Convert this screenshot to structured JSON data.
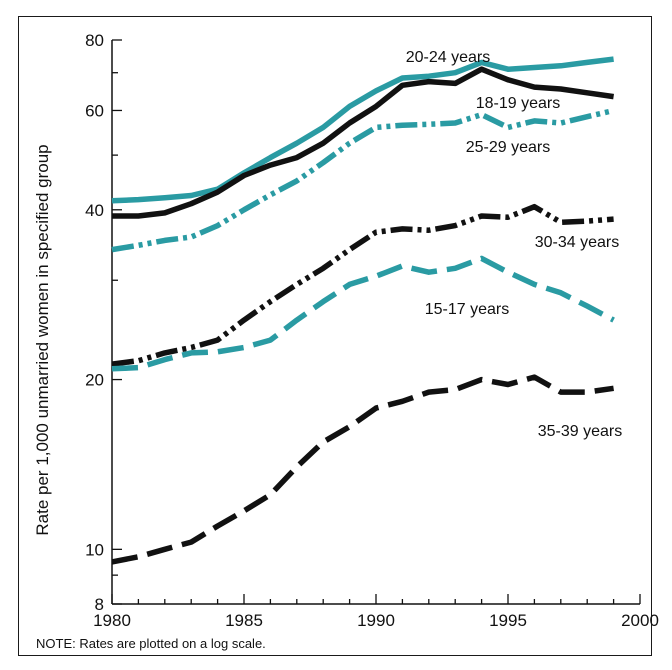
{
  "chart_data": {
    "type": "line",
    "title": "",
    "xlabel": "",
    "ylabel": "Rate per 1,000 unmarried women in specified group",
    "y_scale": "log",
    "xlim": [
      1980,
      2000
    ],
    "ylim": [
      8,
      80
    ],
    "x_ticks": [
      1980,
      1985,
      1990,
      1995,
      2000
    ],
    "y_ticks": [
      8,
      10,
      20,
      40,
      60,
      80
    ],
    "note": "NOTE: Rates are plotted on a log scale.",
    "grid": false,
    "x": [
      1980,
      1981,
      1982,
      1983,
      1984,
      1985,
      1986,
      1987,
      1988,
      1989,
      1990,
      1991,
      1992,
      1993,
      1994,
      1995,
      1996,
      1997,
      1998,
      1999
    ],
    "series": [
      {
        "name": "20-24 years",
        "color": "#2a9ba3",
        "dash": "solid",
        "values": [
          41.5,
          41.7,
          42.0,
          42.4,
          43.5,
          46.5,
          49.5,
          52.5,
          56.0,
          61.0,
          65.0,
          68.5,
          69.0,
          70.0,
          73.0,
          71.0,
          71.5,
          72.0,
          73.0,
          74.0
        ]
      },
      {
        "name": "18-19 years",
        "color": "#111111",
        "dash": "solid",
        "values": [
          39.0,
          39.0,
          39.5,
          41.0,
          43.0,
          46.0,
          48.0,
          49.5,
          52.5,
          57.0,
          61.0,
          66.5,
          67.5,
          67.0,
          71.0,
          68.0,
          66.0,
          65.5,
          64.5,
          63.5
        ]
      },
      {
        "name": "25-29 years",
        "color": "#2a9ba3",
        "dash": "dashdotdot",
        "values": [
          34.0,
          34.6,
          35.3,
          35.8,
          37.5,
          40.0,
          42.5,
          45.0,
          48.5,
          52.5,
          56.0,
          56.5,
          56.7,
          57.0,
          59.0,
          56.0,
          57.5,
          57.0,
          58.5,
          60.0
        ]
      },
      {
        "name": "30-34 years",
        "color": "#111111",
        "dash": "dashdotdot",
        "values": [
          21.3,
          21.6,
          22.3,
          22.8,
          23.5,
          25.5,
          27.5,
          29.5,
          31.5,
          34.0,
          36.5,
          37.0,
          36.8,
          37.5,
          39.0,
          38.8,
          40.5,
          38.0,
          38.2,
          38.5
        ]
      },
      {
        "name": "15-17 years",
        "color": "#2a9ba3",
        "dash": "longdash",
        "values": [
          20.9,
          21.0,
          21.7,
          22.3,
          22.4,
          22.8,
          23.5,
          25.5,
          27.5,
          29.5,
          30.5,
          31.8,
          31.0,
          31.5,
          32.8,
          31.0,
          29.5,
          28.5,
          27.0,
          25.5
        ]
      },
      {
        "name": "35-39 years",
        "color": "#111111",
        "dash": "longdash",
        "values": [
          9.5,
          9.7,
          10.0,
          10.3,
          11.0,
          11.7,
          12.5,
          14.0,
          15.5,
          16.5,
          17.8,
          18.3,
          19.0,
          19.2,
          20.0,
          19.6,
          20.2,
          19.0,
          19.0,
          19.3
        ]
      }
    ]
  }
}
